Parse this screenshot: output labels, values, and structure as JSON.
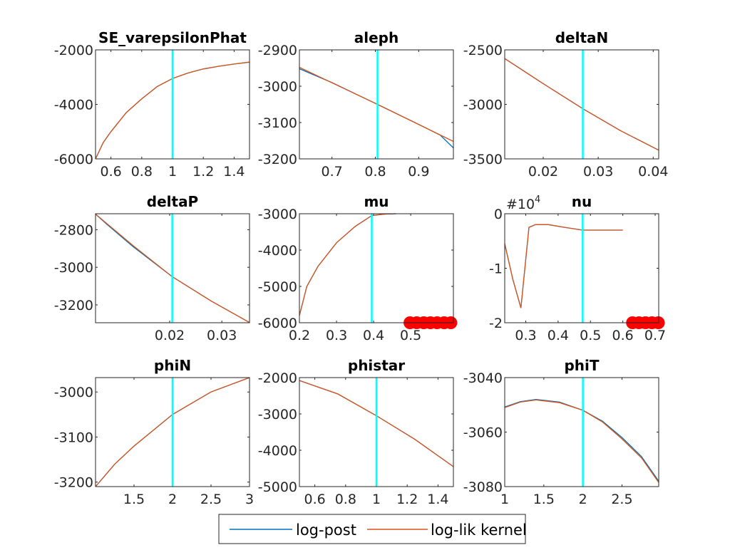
{
  "colors": {
    "post": "#0072BD",
    "lik": "#D95319",
    "vline": "#00FFFF",
    "dots": "#FF0000"
  },
  "legend": {
    "post_label": "log-post",
    "lik_label": "log-lik kernel"
  },
  "chart_data": [
    {
      "type": "line",
      "title": "SE_varepsilonPhat",
      "xlim": [
        0.5,
        1.5
      ],
      "ylim": [
        -6000,
        -2000
      ],
      "xticks": [
        0.6,
        0.8,
        1,
        1.2,
        1.4
      ],
      "xticklabels": [
        "0.6",
        "0.8",
        "1",
        "1.2",
        "1.4"
      ],
      "yticks": [
        -6000,
        -4000,
        -2000
      ],
      "yticklabels": [
        "-6000",
        "-4000",
        "-2000"
      ],
      "vline": 1,
      "series": [
        {
          "name": "log-post",
          "x": [
            0.5,
            0.55,
            0.6,
            0.7,
            0.8,
            0.9,
            1.0,
            1.1,
            1.2,
            1.3,
            1.4,
            1.5
          ],
          "y": [
            -6000,
            -5400,
            -5000,
            -4300,
            -3800,
            -3350,
            -3050,
            -2850,
            -2700,
            -2600,
            -2520,
            -2450
          ]
        },
        {
          "name": "log-lik kernel",
          "x": [
            0.5,
            0.55,
            0.6,
            0.7,
            0.8,
            0.9,
            1.0,
            1.1,
            1.2,
            1.3,
            1.4,
            1.5
          ],
          "y": [
            -6000,
            -5400,
            -5000,
            -4300,
            -3800,
            -3350,
            -3050,
            -2850,
            -2700,
            -2600,
            -2520,
            -2450
          ]
        }
      ],
      "dots": []
    },
    {
      "type": "line",
      "title": "aleph",
      "xlim": [
        0.625,
        0.98
      ],
      "ylim": [
        -3200,
        -2900
      ],
      "xticks": [
        0.7,
        0.8,
        0.9
      ],
      "xticklabels": [
        "0.7",
        "0.8",
        "0.9"
      ],
      "yticks": [
        -3200,
        -3100,
        -3000,
        -2900
      ],
      "yticklabels": [
        "-3200",
        "-3100",
        "-3000",
        "-2900"
      ],
      "vline": 0.805,
      "series": [
        {
          "name": "log-post",
          "x": [
            0.625,
            0.7,
            0.805,
            0.9,
            0.95,
            0.98
          ],
          "y": [
            -2952,
            -2990,
            -3050,
            -3105,
            -3135,
            -3170
          ]
        },
        {
          "name": "log-lik kernel",
          "x": [
            0.625,
            0.805,
            0.98
          ],
          "y": [
            -2948,
            -3050,
            -3152
          ]
        }
      ],
      "dots": []
    },
    {
      "type": "line",
      "title": "deltaN",
      "xlim": [
        0.013,
        0.041
      ],
      "ylim": [
        -3500,
        -2500
      ],
      "xticks": [
        0.02,
        0.03,
        0.04
      ],
      "xticklabels": [
        "0.02",
        "0.03",
        "0.04"
      ],
      "yticks": [
        -3500,
        -3000,
        -2500
      ],
      "yticklabels": [
        "-3500",
        "-3000",
        "-2500"
      ],
      "vline": 0.0272,
      "series": [
        {
          "name": "log-post",
          "x": [
            0.013,
            0.02,
            0.0272,
            0.034,
            0.041
          ],
          "y": [
            -2580,
            -2810,
            -3040,
            -3240,
            -3420
          ]
        },
        {
          "name": "log-lik kernel",
          "x": [
            0.013,
            0.02,
            0.0272,
            0.034,
            0.041
          ],
          "y": [
            -2580,
            -2810,
            -3040,
            -3240,
            -3420
          ]
        }
      ],
      "dots": []
    },
    {
      "type": "line",
      "title": "deltaP",
      "xlim": [
        0.0058,
        0.0353
      ],
      "ylim": [
        -3295,
        -2715
      ],
      "xticks": [
        0.02,
        0.03
      ],
      "xticklabels": [
        "0.02",
        "0.03"
      ],
      "yticks": [
        -3200,
        -3000,
        -2800
      ],
      "yticklabels": [
        "-3200",
        "-3000",
        "-2800"
      ],
      "vline": 0.0205,
      "series": [
        {
          "name": "log-post",
          "x": [
            0.0058,
            0.008,
            0.013,
            0.0205,
            0.028,
            0.0353
          ],
          "y": [
            -2717,
            -2772,
            -2890,
            -3050,
            -3180,
            -3294
          ]
        },
        {
          "name": "log-lik kernel",
          "x": [
            0.0058,
            0.013,
            0.0205,
            0.028,
            0.0353
          ],
          "y": [
            -2717,
            -2885,
            -3050,
            -3180,
            -3294
          ]
        }
      ],
      "dots": []
    },
    {
      "type": "line",
      "title": "mu",
      "xlim": [
        0.2,
        0.615
      ],
      "ylim": [
        -6000,
        -3000
      ],
      "xticks": [
        0.2,
        0.3,
        0.4,
        0.5
      ],
      "xticklabels": [
        "0.2",
        "0.3",
        "0.4",
        "0.5"
      ],
      "yticks": [
        -6000,
        -5000,
        -4000,
        -3000
      ],
      "yticklabels": [
        "-6000",
        "-5000",
        "-4000",
        "-3000"
      ],
      "vline": 0.395,
      "series": [
        {
          "name": "log-post",
          "x": [
            0.2,
            0.22,
            0.25,
            0.3,
            0.35,
            0.395,
            0.43,
            0.46
          ],
          "y": [
            -5800,
            -5000,
            -4450,
            -3800,
            -3350,
            -3050,
            -3010,
            -3000
          ]
        },
        {
          "name": "log-lik kernel",
          "x": [
            0.2,
            0.22,
            0.25,
            0.3,
            0.35,
            0.395,
            0.43,
            0.46
          ],
          "y": [
            -5800,
            -5000,
            -4450,
            -3800,
            -3350,
            -3050,
            -3010,
            -3000
          ]
        }
      ],
      "dots": [
        0.498,
        0.516,
        0.535,
        0.553,
        0.571,
        0.59,
        0.608
      ]
    },
    {
      "type": "line",
      "title": "nu",
      "exponent_label": "#10",
      "exponent": "4",
      "xlim": [
        0.235,
        0.711
      ],
      "ylim": [
        -2,
        0
      ],
      "xticks": [
        0.3,
        0.4,
        0.5,
        0.6,
        0.7
      ],
      "xticklabels": [
        "0.3",
        "0.4",
        "0.5",
        "0.6",
        "0.7"
      ],
      "yticks": [
        -2,
        -1,
        0
      ],
      "yticklabels": [
        "-2",
        "-1",
        "0"
      ],
      "vline": 0.476,
      "series": [
        {
          "name": "log-post",
          "x": [
            0.235,
            0.26,
            0.285,
            0.31,
            0.33,
            0.37,
            0.42,
            0.476,
            0.6
          ],
          "y": [
            -0.55,
            -1.2,
            -1.73,
            -0.25,
            -0.2,
            -0.2,
            -0.25,
            -0.3,
            -0.3
          ]
        },
        {
          "name": "log-lik kernel",
          "x": [
            0.235,
            0.26,
            0.285,
            0.31,
            0.33,
            0.37,
            0.42,
            0.476,
            0.6
          ],
          "y": [
            -0.55,
            -1.2,
            -1.73,
            -0.25,
            -0.2,
            -0.2,
            -0.25,
            -0.3,
            -0.3
          ]
        }
      ],
      "dots": [
        0.63,
        0.65,
        0.67,
        0.69,
        0.71
      ]
    },
    {
      "type": "line",
      "title": "phiN",
      "xlim": [
        1,
        3
      ],
      "ylim": [
        -3210,
        -2968
      ],
      "xticks": [
        1.5,
        2,
        2.5,
        3
      ],
      "xticklabels": [
        "1.5",
        "2",
        "2.5",
        "3"
      ],
      "yticks": [
        -3200,
        -3100,
        -3000
      ],
      "yticklabels": [
        "-3200",
        "-3100",
        "-3000"
      ],
      "vline": 2,
      "series": [
        {
          "name": "log-post",
          "x": [
            1,
            1.25,
            1.5,
            2,
            2.5,
            3
          ],
          "y": [
            -3210,
            -3160,
            -3120,
            -3050,
            -3000,
            -2968
          ]
        },
        {
          "name": "log-lik kernel",
          "x": [
            1,
            1.25,
            1.5,
            2,
            2.5,
            3
          ],
          "y": [
            -3210,
            -3160,
            -3120,
            -3050,
            -3000,
            -2968
          ]
        }
      ],
      "dots": []
    },
    {
      "type": "line",
      "title": "phistar",
      "xlim": [
        0.5,
        1.5
      ],
      "ylim": [
        -5000,
        -2000
      ],
      "xticks": [
        0.6,
        0.8,
        1,
        1.2,
        1.4
      ],
      "xticklabels": [
        "0.6",
        "0.8",
        "1",
        "1.2",
        "1.4"
      ],
      "yticks": [
        -5000,
        -4000,
        -3000,
        -2000
      ],
      "yticklabels": [
        "-5000",
        "-4000",
        "-3000",
        "-2000"
      ],
      "vline": 1,
      "series": [
        {
          "name": "log-post",
          "x": [
            0.5,
            0.75,
            1,
            1.25,
            1.5
          ],
          "y": [
            -2080,
            -2450,
            -3050,
            -3700,
            -4450
          ]
        },
        {
          "name": "log-lik kernel",
          "x": [
            0.5,
            0.75,
            1,
            1.25,
            1.5
          ],
          "y": [
            -2080,
            -2450,
            -3050,
            -3700,
            -4450
          ]
        }
      ],
      "dots": []
    },
    {
      "type": "line",
      "title": "phiT",
      "xlim": [
        1,
        2.97
      ],
      "ylim": [
        -3080,
        -3040
      ],
      "xticks": [
        1,
        1.5,
        2,
        2.5
      ],
      "xticklabels": [
        "1",
        "1.5",
        "2",
        "2.5"
      ],
      "yticks": [
        -3080,
        -3060,
        -3040
      ],
      "yticklabels": [
        "-3080",
        "-3060",
        "-3040"
      ],
      "vline": 2,
      "series": [
        {
          "name": "log-post",
          "x": [
            1,
            1.2,
            1.4,
            1.7,
            2,
            2.25,
            2.5,
            2.75,
            2.97
          ],
          "y": [
            -3050.8,
            -3048.8,
            -3048,
            -3049,
            -3052,
            -3056,
            -3062,
            -3069,
            -3078
          ]
        },
        {
          "name": "log-lik kernel",
          "x": [
            1,
            1.2,
            1.4,
            1.7,
            2,
            2.25,
            2.5,
            2.75,
            2.97
          ],
          "y": [
            -3051,
            -3049,
            -3048.2,
            -3049.2,
            -3052,
            -3056.3,
            -3062.5,
            -3069.5,
            -3078.5
          ]
        }
      ],
      "dots": []
    }
  ]
}
